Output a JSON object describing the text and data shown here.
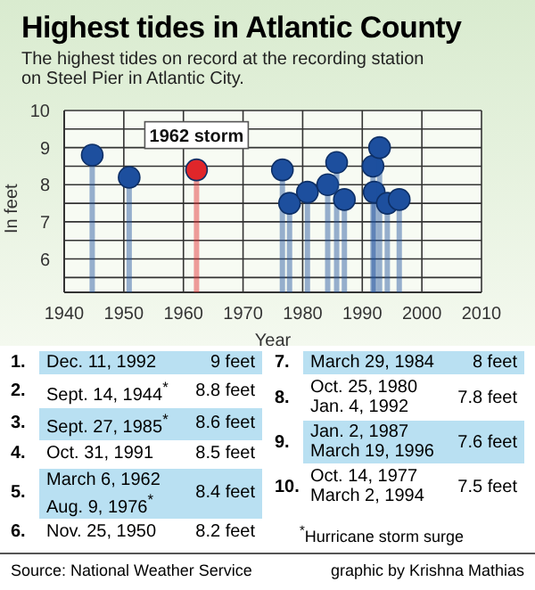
{
  "chart_data": {
    "type": "lollipop",
    "title": "Highest tides in Atlantic County",
    "subtitle": "The highest tides on record at the recording station on Steel Pier in Atlantic City.",
    "xlabel": "Year",
    "ylabel": "In feet",
    "x": [
      1944.7,
      1950.9,
      1962.2,
      1976.6,
      1977.8,
      1980.8,
      1984.2,
      1985.7,
      1987.0,
      1991.8,
      1992.0,
      1992.9,
      1994.2,
      1996.2
    ],
    "values": [
      8.8,
      8.2,
      8.4,
      8.4,
      7.5,
      7.8,
      8.0,
      8.6,
      7.6,
      8.5,
      7.8,
      9.0,
      7.5,
      7.6
    ],
    "colors": [
      "#1d4f9e",
      "#1d4f9e",
      "#e0262a",
      "#1d4f9e",
      "#1d4f9e",
      "#1d4f9e",
      "#1d4f9e",
      "#1d4f9e",
      "#1d4f9e",
      "#1d4f9e",
      "#1d4f9e",
      "#1d4f9e",
      "#1d4f9e",
      "#1d4f9e"
    ],
    "xlim": [
      1940,
      2010
    ],
    "xticks": [
      1940,
      1950,
      1960,
      1970,
      1980,
      1990,
      2000,
      2010
    ],
    "ylim": [
      5.1,
      10
    ],
    "yticks": [
      {
        "value": 5.5,
        "label": null
      },
      6,
      {
        "value": 6.5,
        "label": null
      },
      7,
      {
        "value": 7.5,
        "label": null
      },
      8,
      {
        "value": 8.5,
        "label": null
      },
      9,
      {
        "value": 9.5,
        "label": null
      },
      10
    ],
    "grid": true,
    "legend": false,
    "marker": "circle",
    "annotations": [
      {
        "text": "1962 storm",
        "x": 1962.2,
        "y": 8.4
      },
      "1.",
      "Dec. 11, 1992",
      "9 feet",
      "2.",
      "Sept. 14, 1944$^{*}$",
      "8.8 feet",
      "3.",
      "Sept. 27, 1985$^{*}$",
      "8.6 feet",
      "4.",
      "Oct. 31, 1991",
      "8.5 feet",
      "5.",
      "March 6, 1962\nAug. 9, 1976$^{*}$",
      "8.4 feet",
      "6.",
      "Nov. 25, 1950",
      "8.2 feet",
      "7.",
      "March 29, 1984",
      "8 feet",
      "8.",
      "Oct. 25, 1980\nJan. 4, 1992",
      "7.8 feet",
      "9.",
      "Jan. 2, 1987\nMarch 19, 1996",
      "7.6 feet",
      "10.",
      "Oct. 14, 1977\nMarch 2, 1994",
      "7.5 feet",
      "$^{*}$Hurricane storm surge",
      "Source: National Weather Service",
      "graphic by Krishna Mathias"
    ]
  }
}
